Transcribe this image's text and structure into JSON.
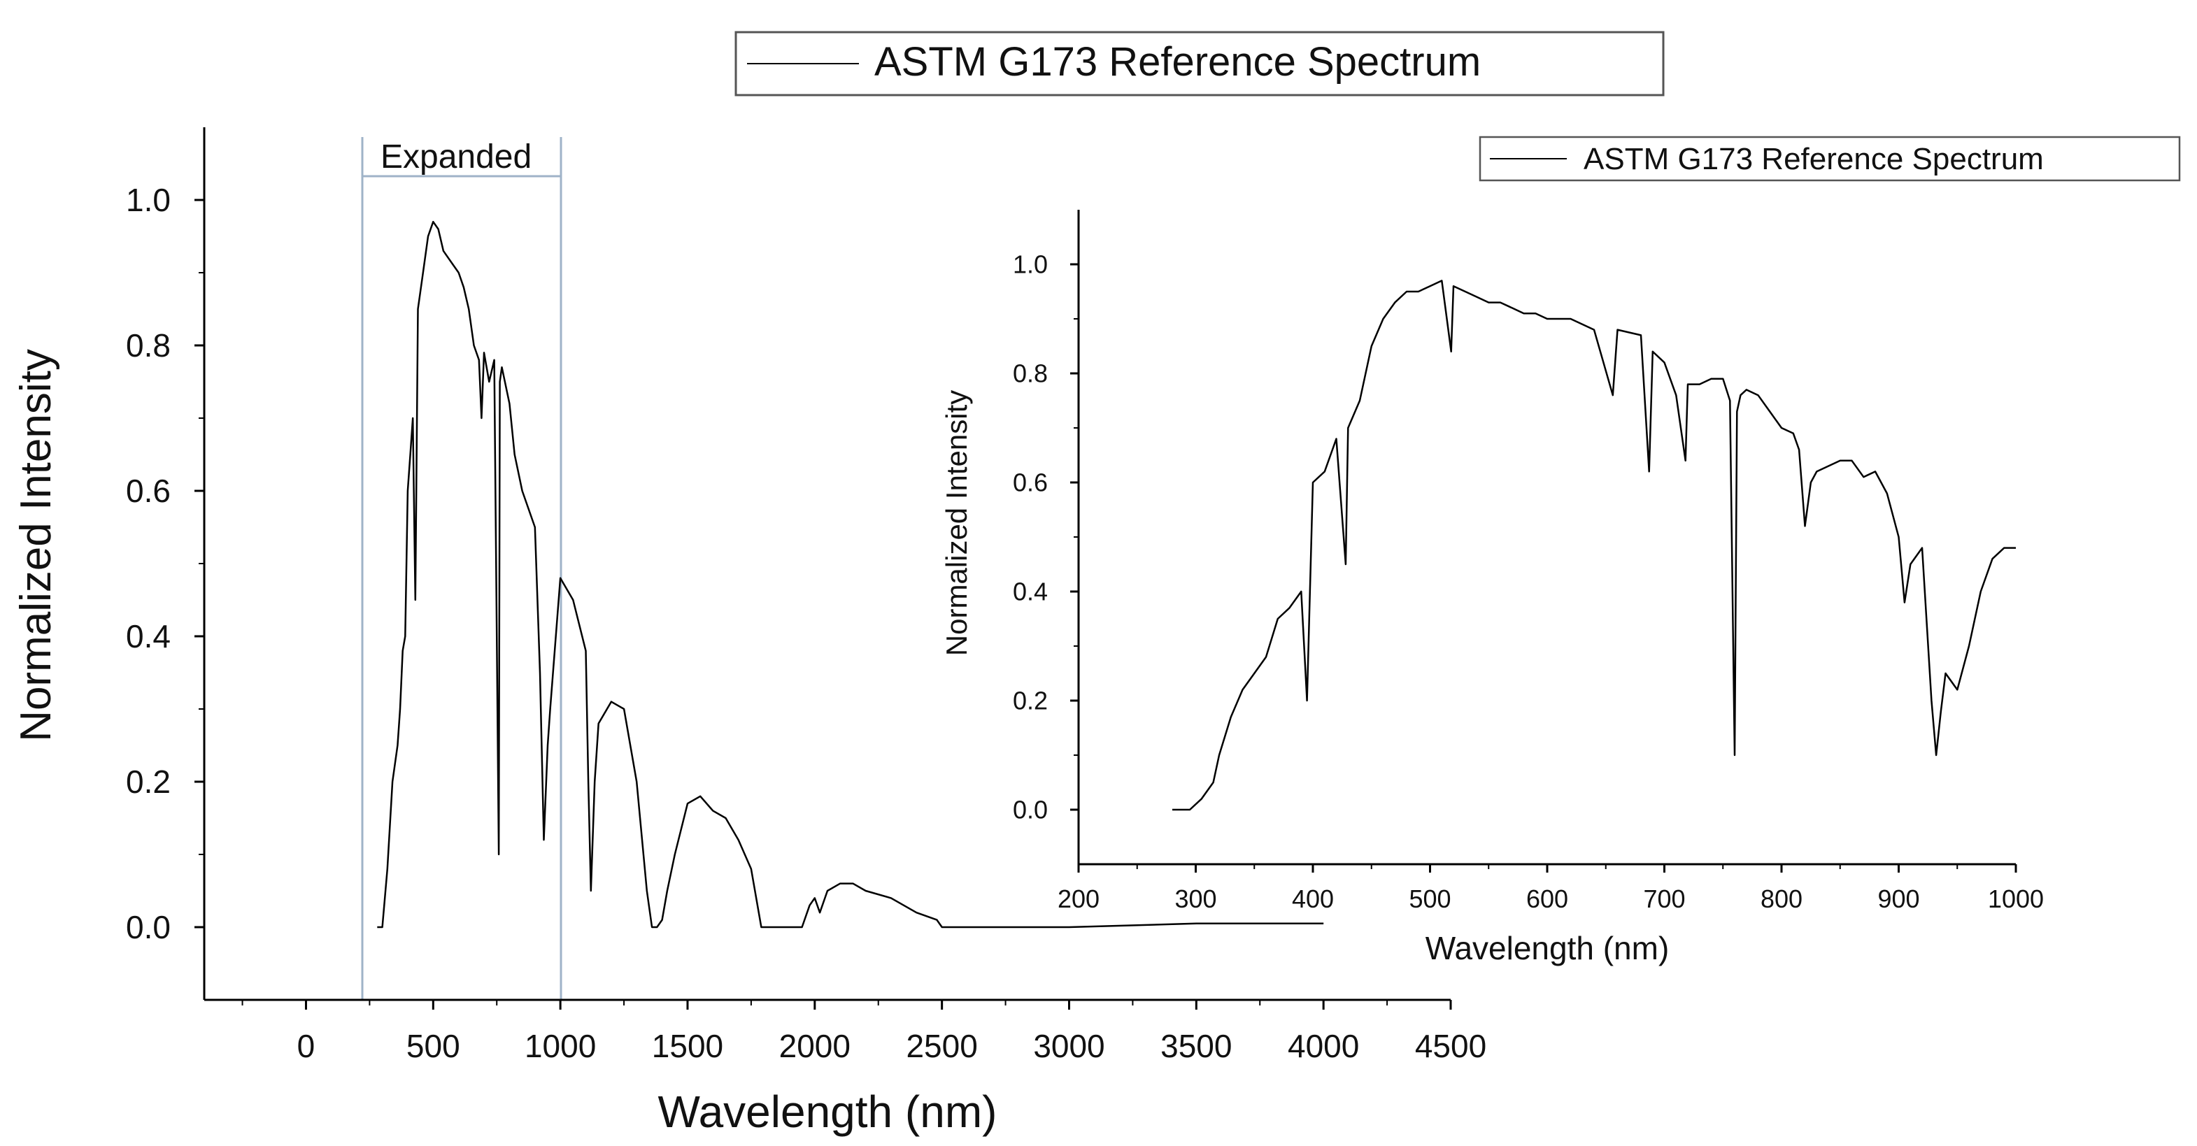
{
  "chart_data": [
    {
      "id": "main",
      "type": "line",
      "legend": "ASTM G173 Reference Spectrum",
      "legend_position": "top-center",
      "xlabel": "Wavelength (nm)",
      "ylabel": "Normalized Intensity",
      "xlim": [
        -400,
        4500
      ],
      "ylim": [
        -0.1,
        1.1
      ],
      "xticks": [
        0,
        500,
        1000,
        1500,
        2000,
        2500,
        3000,
        3500,
        4000,
        4500
      ],
      "xtick_labels": [
        "0",
        "500",
        "1000",
        "1500",
        "2000",
        "2500",
        "3000",
        "3500",
        "4000",
        "4500"
      ],
      "yticks": [
        0.0,
        0.2,
        0.4,
        0.6,
        0.8,
        1.0
      ],
      "ytick_labels": [
        "0.0",
        "0.2",
        "0.4",
        "0.6",
        "0.8",
        "1.0"
      ],
      "expanded_region": {
        "label": "Expanded",
        "x_range": [
          350,
          1110
        ]
      },
      "series": [
        {
          "name": "ASTM G173 Reference Spectrum",
          "x": [
            280,
            300,
            320,
            340,
            360,
            370,
            380,
            390,
            400,
            410,
            420,
            430,
            440,
            460,
            480,
            500,
            520,
            540,
            560,
            580,
            600,
            620,
            640,
            660,
            680,
            690,
            700,
            720,
            740,
            758,
            762,
            770,
            800,
            820,
            850,
            900,
            920,
            935,
            950,
            960,
            1000,
            1050,
            1100,
            1110,
            1120,
            1135,
            1150,
            1200,
            1250,
            1300,
            1340,
            1360,
            1380,
            1400,
            1420,
            1450,
            1500,
            1550,
            1600,
            1650,
            1700,
            1750,
            1790,
            1800,
            1850,
            1900,
            1950,
            1980,
            2000,
            2020,
            2050,
            2100,
            2150,
            2200,
            2300,
            2400,
            2480,
            2500,
            2600,
            3000,
            3500,
            4000
          ],
          "y": [
            0.0,
            0.0,
            0.08,
            0.2,
            0.25,
            0.3,
            0.38,
            0.4,
            0.6,
            0.65,
            0.7,
            0.45,
            0.85,
            0.9,
            0.95,
            0.97,
            0.96,
            0.93,
            0.92,
            0.91,
            0.9,
            0.88,
            0.85,
            0.8,
            0.78,
            0.7,
            0.79,
            0.75,
            0.78,
            0.1,
            0.75,
            0.77,
            0.72,
            0.65,
            0.6,
            0.55,
            0.35,
            0.12,
            0.25,
            0.3,
            0.48,
            0.45,
            0.38,
            0.2,
            0.05,
            0.2,
            0.28,
            0.31,
            0.3,
            0.2,
            0.05,
            0.0,
            0.0,
            0.01,
            0.05,
            0.1,
            0.17,
            0.18,
            0.16,
            0.15,
            0.12,
            0.08,
            0.0,
            0.0,
            0.0,
            0.0,
            0.0,
            0.03,
            0.04,
            0.02,
            0.05,
            0.06,
            0.06,
            0.05,
            0.04,
            0.02,
            0.01,
            0.0,
            0.0,
            0.0,
            0.005,
            0.005
          ]
        }
      ]
    },
    {
      "id": "inset",
      "type": "line",
      "legend": "ASTM G173 Reference Spectrum",
      "legend_position": "top-right",
      "xlabel": "Wavelength (nm)",
      "ylabel": "Normalized Intensity",
      "xlim": [
        200,
        1000
      ],
      "ylim": [
        -0.1,
        1.1
      ],
      "xticks": [
        200,
        300,
        400,
        500,
        600,
        700,
        800,
        900,
        1000
      ],
      "xtick_labels": [
        "200",
        "300",
        "400",
        "500",
        "600",
        "700",
        "800",
        "900",
        "1000"
      ],
      "yticks": [
        0.0,
        0.2,
        0.4,
        0.6,
        0.8,
        1.0
      ],
      "ytick_labels": [
        "0.0",
        "0.2",
        "0.4",
        "0.6",
        "0.8",
        "1.0"
      ],
      "series": [
        {
          "name": "ASTM G173 Reference Spectrum",
          "x": [
            280,
            295,
            305,
            315,
            320,
            330,
            340,
            350,
            360,
            370,
            380,
            390,
            395,
            400,
            410,
            420,
            428,
            430,
            440,
            450,
            460,
            470,
            480,
            490,
            500,
            510,
            518,
            520,
            530,
            540,
            550,
            560,
            570,
            580,
            590,
            600,
            620,
            640,
            656,
            660,
            680,
            687,
            690,
            700,
            710,
            718,
            720,
            730,
            740,
            750,
            756,
            760,
            762,
            765,
            770,
            780,
            790,
            800,
            810,
            815,
            820,
            825,
            830,
            850,
            860,
            870,
            880,
            890,
            900,
            905,
            910,
            920,
            928,
            932,
            936,
            940,
            950,
            960,
            970,
            980,
            990,
            1000
          ],
          "y": [
            0.0,
            0.0,
            0.02,
            0.05,
            0.1,
            0.17,
            0.22,
            0.25,
            0.28,
            0.35,
            0.37,
            0.4,
            0.2,
            0.6,
            0.62,
            0.68,
            0.45,
            0.7,
            0.75,
            0.85,
            0.9,
            0.93,
            0.95,
            0.95,
            0.96,
            0.97,
            0.84,
            0.96,
            0.95,
            0.94,
            0.93,
            0.93,
            0.92,
            0.91,
            0.91,
            0.9,
            0.9,
            0.88,
            0.76,
            0.88,
            0.87,
            0.62,
            0.84,
            0.82,
            0.76,
            0.64,
            0.78,
            0.78,
            0.79,
            0.79,
            0.75,
            0.1,
            0.73,
            0.76,
            0.77,
            0.76,
            0.73,
            0.7,
            0.69,
            0.66,
            0.52,
            0.6,
            0.62,
            0.64,
            0.64,
            0.61,
            0.62,
            0.58,
            0.5,
            0.38,
            0.45,
            0.48,
            0.2,
            0.1,
            0.18,
            0.25,
            0.22,
            0.3,
            0.4,
            0.46,
            0.48,
            0.48
          ]
        }
      ]
    }
  ]
}
